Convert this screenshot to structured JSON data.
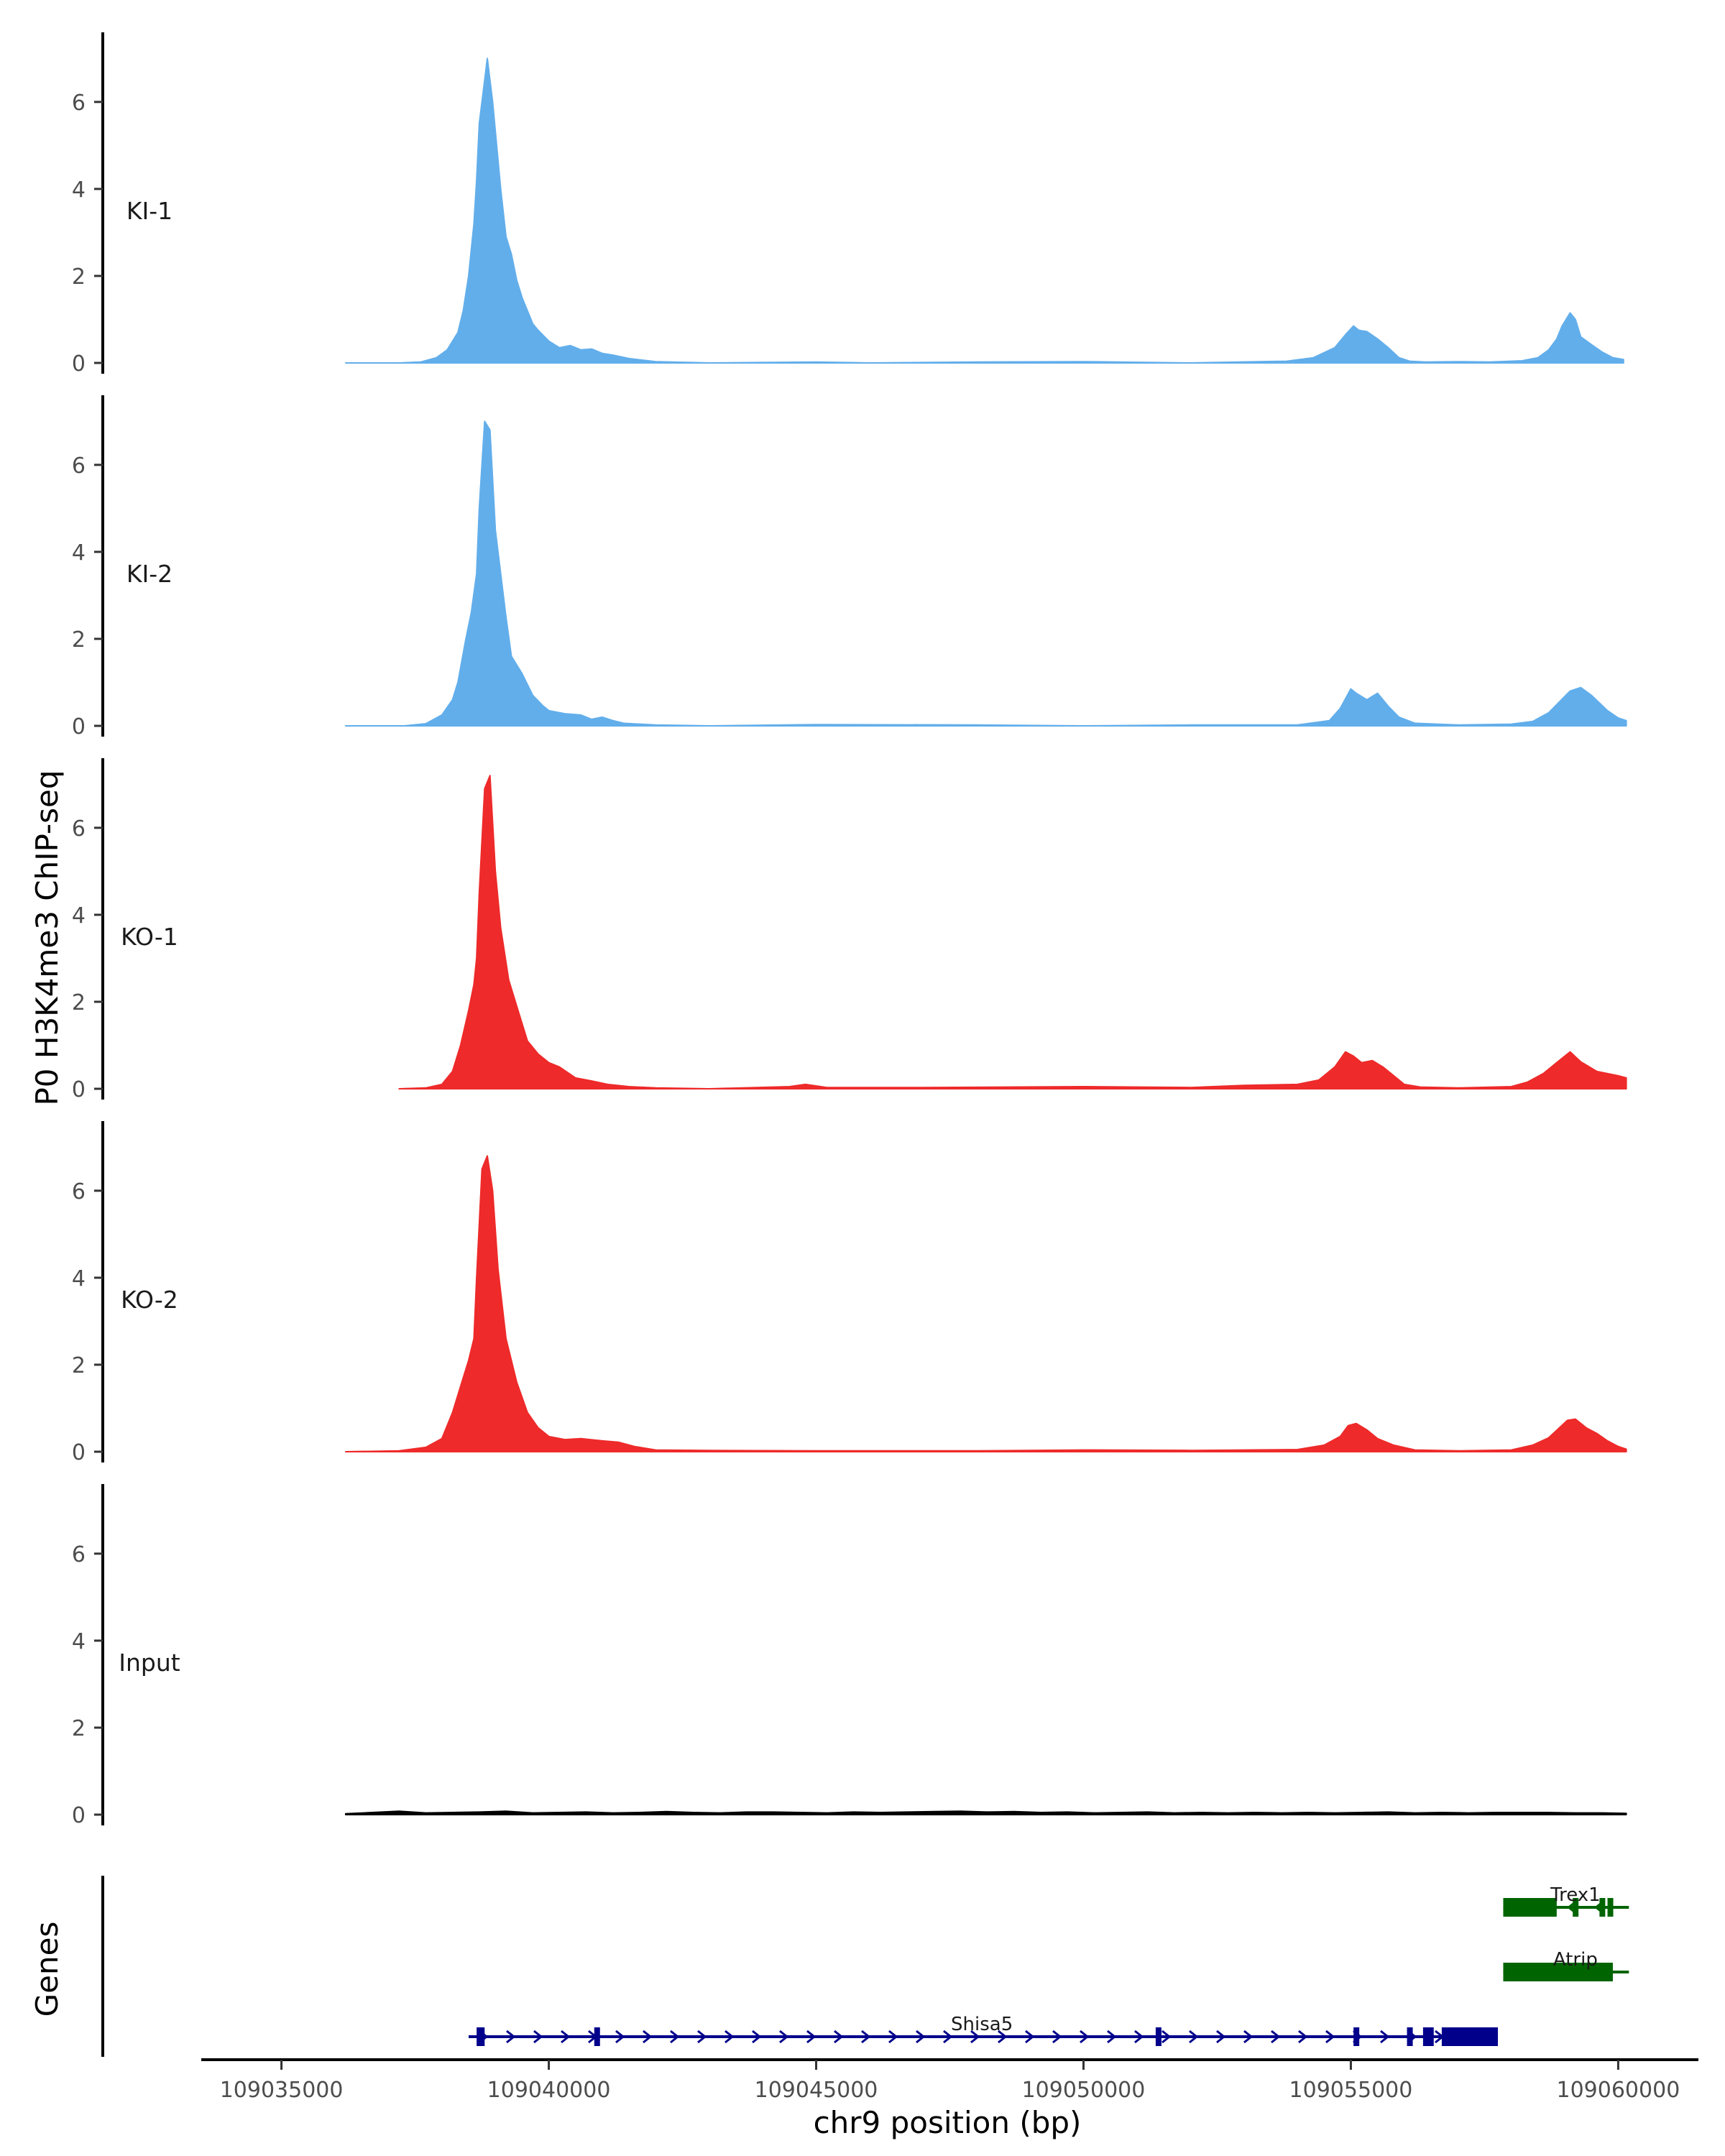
{
  "chart_data": {
    "type": "area",
    "ylabel": "P0 H3K4me3 ChIP-seq",
    "xlabel": "chr9 position (bp)",
    "xlim": [
      109033500,
      109061500
    ],
    "x_ticks": [
      109035000,
      109040000,
      109045000,
      109050000,
      109055000,
      109060000
    ],
    "x_tick_labels": [
      "109035000",
      "109040000",
      "109045000",
      "109050000",
      "109055000",
      "109060000"
    ],
    "ylim": [
      0,
      7.6
    ],
    "y_ticks": [
      0,
      2,
      4,
      6
    ],
    "y_tick_labels": [
      "0",
      "2",
      "4",
      "6"
    ],
    "colors": {
      "KI": "#62aeeb",
      "KO": "#ee2a2a",
      "Input": "#000000",
      "gene_minus": "#006400",
      "gene_plus": "#00008b",
      "axis": "#000000"
    },
    "tracks": [
      {
        "name": "KI-1",
        "label": "KI-1",
        "color": "#62aeeb",
        "x": [
          109036200,
          109037200,
          109037600,
          109037900,
          109038100,
          109038300,
          109038400,
          109038500,
          109038600,
          109038650,
          109038700,
          109038800,
          109038850,
          109038950,
          109039100,
          109039200,
          109039300,
          109039400,
          109039500,
          109039600,
          109039700,
          109039800,
          109040000,
          109040200,
          109040400,
          109040600,
          109040800,
          109041000,
          109041200,
          109041500,
          109042000,
          109043000,
          109045000,
          109046000,
          109048000,
          109050000,
          109052000,
          109053800,
          109054300,
          109054700,
          109054900,
          109055050,
          109055150,
          109055300,
          109055500,
          109055700,
          109055900,
          109056100,
          109056400,
          109057000,
          109057600,
          109058200,
          109058500,
          109058700,
          109058850,
          109058950,
          109059100,
          109059200,
          109059300,
          109059500,
          109059700,
          109059900,
          109060100
        ],
        "values": [
          0,
          0,
          0.02,
          0.12,
          0.3,
          0.7,
          1.2,
          2.0,
          3.2,
          4.2,
          5.5,
          6.5,
          7.0,
          6.0,
          4.0,
          2.9,
          2.5,
          1.9,
          1.5,
          1.2,
          0.9,
          0.75,
          0.5,
          0.35,
          0.4,
          0.3,
          0.32,
          0.22,
          0.18,
          0.1,
          0.03,
          0,
          0.02,
          0,
          0.02,
          0.03,
          0,
          0.04,
          0.12,
          0.35,
          0.65,
          0.85,
          0.75,
          0.72,
          0.55,
          0.35,
          0.12,
          0.04,
          0.02,
          0.03,
          0.02,
          0.05,
          0.12,
          0.3,
          0.55,
          0.85,
          1.15,
          1.0,
          0.6,
          0.42,
          0.25,
          0.12,
          0.08
        ]
      },
      {
        "name": "KI-2",
        "label": "KI-2",
        "color": "#62aeeb",
        "x": [
          109036200,
          109037300,
          109037700,
          109038000,
          109038200,
          109038300,
          109038450,
          109038550,
          109038650,
          109038700,
          109038800,
          109038900,
          109039000,
          109039100,
          109039200,
          109039300,
          109039500,
          109039700,
          109039900,
          109040000,
          109040300,
          109040600,
          109040800,
          109041000,
          109041200,
          109041400,
          109042000,
          109043000,
          109045000,
          109048000,
          109050000,
          109052000,
          109054000,
          109054600,
          109054800,
          109055000,
          109055100,
          109055300,
          109055500,
          109055700,
          109055900,
          109056200,
          109057000,
          109058000,
          109058400,
          109058700,
          109058900,
          109059100,
          109059300,
          109059500,
          109059800,
          109060000,
          109060150
        ],
        "values": [
          0,
          0,
          0.05,
          0.25,
          0.6,
          1.0,
          2.0,
          2.6,
          3.5,
          5.0,
          7.0,
          6.8,
          4.5,
          3.5,
          2.5,
          1.6,
          1.2,
          0.7,
          0.45,
          0.35,
          0.28,
          0.25,
          0.15,
          0.2,
          0.12,
          0.06,
          0.02,
          0,
          0.03,
          0.02,
          0,
          0.02,
          0.02,
          0.12,
          0.4,
          0.85,
          0.75,
          0.6,
          0.75,
          0.45,
          0.2,
          0.06,
          0.02,
          0.04,
          0.1,
          0.3,
          0.55,
          0.8,
          0.88,
          0.7,
          0.35,
          0.18,
          0.12
        ]
      },
      {
        "name": "KO-1",
        "label": "KO-1",
        "color": "#ee2a2a",
        "x": [
          109037200,
          109037700,
          109038000,
          109038200,
          109038350,
          109038500,
          109038600,
          109038650,
          109038700,
          109038800,
          109038900,
          109039000,
          109039100,
          109039250,
          109039400,
          109039600,
          109039800,
          109040000,
          109040200,
          109040500,
          109040800,
          109041100,
          109041500,
          109042000,
          109043000,
          109044500,
          109044800,
          109045200,
          109047000,
          109050000,
          109052000,
          109053000,
          109054000,
          109054400,
          109054700,
          109054900,
          109055050,
          109055200,
          109055400,
          109055600,
          109055800,
          109056000,
          109056300,
          109057000,
          109058000,
          109058300,
          109058600,
          109058800,
          109059000,
          109059100,
          109059300,
          109059600,
          109059800,
          109060000,
          109060150
        ],
        "values": [
          0,
          0.02,
          0.1,
          0.4,
          1.0,
          1.8,
          2.4,
          3.0,
          4.5,
          6.9,
          7.2,
          5.0,
          3.7,
          2.5,
          1.9,
          1.1,
          0.8,
          0.6,
          0.5,
          0.25,
          0.18,
          0.1,
          0.05,
          0.02,
          0,
          0.05,
          0.1,
          0.03,
          0.03,
          0.05,
          0.03,
          0.08,
          0.1,
          0.2,
          0.5,
          0.85,
          0.75,
          0.6,
          0.65,
          0.5,
          0.3,
          0.1,
          0.04,
          0.02,
          0.05,
          0.15,
          0.35,
          0.55,
          0.75,
          0.85,
          0.62,
          0.4,
          0.35,
          0.3,
          0.25
        ]
      },
      {
        "name": "KO-2",
        "label": "KO-2",
        "color": "#ee2a2a",
        "x": [
          109036200,
          109037200,
          109037700,
          109038000,
          109038200,
          109038400,
          109038500,
          109038600,
          109038650,
          109038750,
          109038850,
          109038950,
          109039050,
          109039200,
          109039400,
          109039600,
          109039800,
          109040000,
          109040300,
          109040600,
          109041000,
          109041300,
          109041600,
          109042000,
          109043000,
          109045000,
          109048000,
          109050000,
          109052000,
          109054000,
          109054500,
          109054800,
          109054950,
          109055100,
          109055300,
          109055500,
          109055800,
          109056200,
          109057000,
          109058000,
          109058400,
          109058700,
          109058900,
          109059050,
          109059200,
          109059400,
          109059600,
          109059800,
          109060000,
          109060150
        ],
        "values": [
          0,
          0.02,
          0.1,
          0.3,
          0.9,
          1.7,
          2.1,
          2.6,
          4.0,
          6.5,
          6.8,
          6.0,
          4.2,
          2.6,
          1.6,
          0.9,
          0.55,
          0.35,
          0.28,
          0.3,
          0.25,
          0.22,
          0.12,
          0.04,
          0.03,
          0.02,
          0.02,
          0.04,
          0.03,
          0.05,
          0.15,
          0.35,
          0.6,
          0.65,
          0.5,
          0.3,
          0.15,
          0.04,
          0.02,
          0.04,
          0.15,
          0.32,
          0.55,
          0.72,
          0.75,
          0.55,
          0.42,
          0.25,
          0.12,
          0.06
        ]
      },
      {
        "name": "Input",
        "label": "Input",
        "color": "#000000",
        "x": [
          109036200,
          109036700,
          109037200,
          109037700,
          109038200,
          109038700,
          109039200,
          109039700,
          109040200,
          109040700,
          109041200,
          109041700,
          109042200,
          109042700,
          109043200,
          109043700,
          109044200,
          109044700,
          109045200,
          109045700,
          109046200,
          109046700,
          109047200,
          109047700,
          109048200,
          109048700,
          109049200,
          109049700,
          109050200,
          109050700,
          109051200,
          109051700,
          109052200,
          109052700,
          109053200,
          109053700,
          109054200,
          109054700,
          109055200,
          109055700,
          109056200,
          109056700,
          109057200,
          109057700,
          109058200,
          109058700,
          109059200,
          109059700,
          109060150
        ],
        "values": [
          0.02,
          0.05,
          0.08,
          0.04,
          0.05,
          0.06,
          0.08,
          0.04,
          0.05,
          0.06,
          0.04,
          0.05,
          0.07,
          0.05,
          0.04,
          0.06,
          0.06,
          0.05,
          0.04,
          0.06,
          0.05,
          0.06,
          0.07,
          0.08,
          0.06,
          0.07,
          0.05,
          0.06,
          0.04,
          0.05,
          0.06,
          0.04,
          0.05,
          0.04,
          0.05,
          0.04,
          0.05,
          0.04,
          0.05,
          0.06,
          0.04,
          0.05,
          0.04,
          0.05,
          0.05,
          0.05,
          0.04,
          0.04,
          0.03
        ]
      }
    ],
    "genes_track_label": "Genes",
    "genes": [
      {
        "name": "Trex1",
        "strand": "-",
        "color": "#006400",
        "row": 0,
        "start": 109057850,
        "end": 109060200,
        "exons": [
          [
            109057850,
            109058850
          ],
          [
            109059150,
            109059200
          ],
          [
            109059650,
            109059700
          ],
          [
            109059800,
            109059880
          ]
        ]
      },
      {
        "name": "Atrip",
        "strand": "-",
        "color": "#006400",
        "row": 1,
        "start": 109057850,
        "end": 109060200,
        "exons": [
          [
            109057850,
            109059900
          ]
        ]
      },
      {
        "name": "Shisa5",
        "strand": "+",
        "color": "#00008b",
        "row": 2,
        "start": 109038500,
        "end": 109057750,
        "exons": [
          [
            109038650,
            109038800
          ],
          [
            109040850,
            109040950
          ],
          [
            109051350,
            109051420
          ],
          [
            109055050,
            109055100
          ],
          [
            109056050,
            109056150
          ],
          [
            109056350,
            109056550
          ],
          [
            109056700,
            109057750
          ]
        ]
      }
    ]
  }
}
